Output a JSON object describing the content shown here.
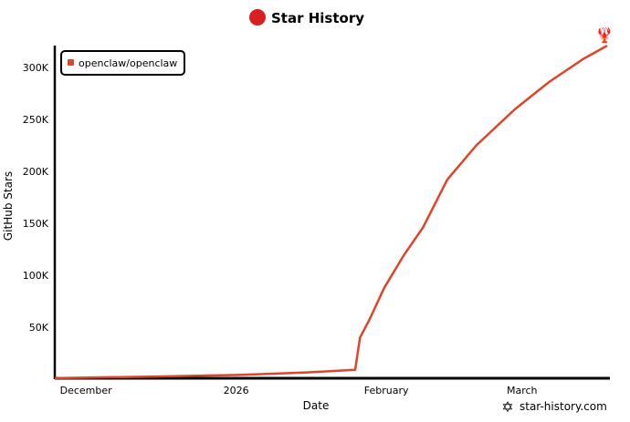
{
  "chart_data": {
    "type": "line",
    "title": "Star History",
    "xlabel": "Date",
    "ylabel": "GitHub Stars",
    "x_ticks": [
      {
        "label": "December",
        "date": "2025-12-01"
      },
      {
        "label": "2026",
        "date": "2026-01-01"
      },
      {
        "label": "February",
        "date": "2026-02-01"
      },
      {
        "label": "March",
        "date": "2026-03-01"
      }
    ],
    "y_ticks": [
      {
        "label": "50K",
        "value": 50000
      },
      {
        "label": "100K",
        "value": 100000
      },
      {
        "label": "150K",
        "value": 150000
      },
      {
        "label": "200K",
        "value": 200000
      },
      {
        "label": "250K",
        "value": 250000
      },
      {
        "label": "300K",
        "value": 300000
      }
    ],
    "xlim": [
      "2025-11-24",
      "2026-03-18"
    ],
    "ylim": [
      0,
      325000
    ],
    "grid": false,
    "legend": "top-left",
    "series": [
      {
        "name": "openclaw/openclaw",
        "color": "#dd4528",
        "points": [
          [
            "2025-11-24",
            1000
          ],
          [
            "2025-12-15",
            2500
          ],
          [
            "2026-01-01",
            4000
          ],
          [
            "2026-01-15",
            6500
          ],
          [
            "2026-01-25",
            9000
          ],
          [
            "2026-01-26",
            40000
          ],
          [
            "2026-01-28",
            58000
          ],
          [
            "2026-01-31",
            88000
          ],
          [
            "2026-02-04",
            119000
          ],
          [
            "2026-02-08",
            146000
          ],
          [
            "2026-02-13",
            192000
          ],
          [
            "2026-02-19",
            225000
          ],
          [
            "2026-02-27",
            260000
          ],
          [
            "2026-03-06",
            286000
          ],
          [
            "2026-03-13",
            308000
          ],
          [
            "2026-03-18",
            321000
          ]
        ]
      }
    ]
  },
  "watermark": "star-history.com",
  "colors": {
    "accent": "#dd4528",
    "watermark_icon": "#22cc22"
  }
}
